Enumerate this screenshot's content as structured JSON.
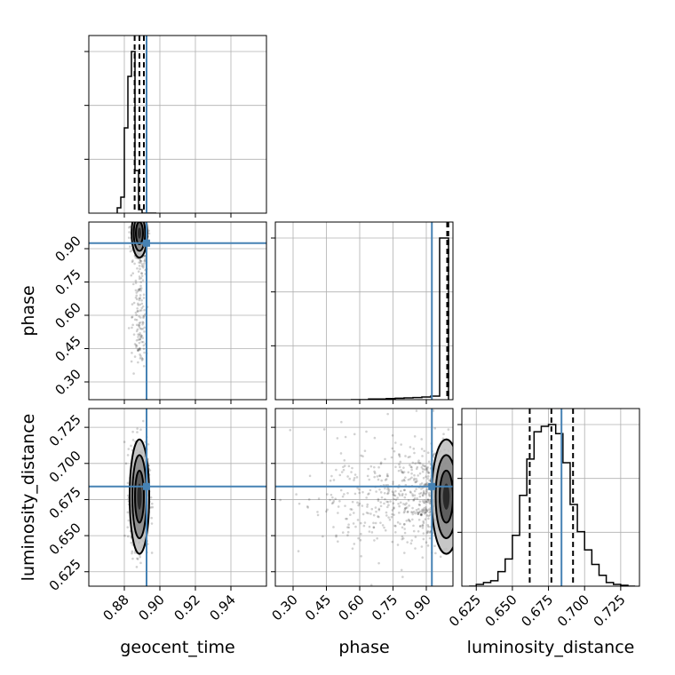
{
  "chart_data": {
    "type": "corner",
    "parameters": [
      {
        "name": "geocent_time",
        "label": "geocent_time",
        "range": [
          0.86,
          0.96
        ],
        "ticks": [
          0.88,
          0.9,
          0.92,
          0.94
        ],
        "tick_labels": [
          "0.88",
          "0.90",
          "0.92",
          "0.94"
        ],
        "truth": 0.8925,
        "quantiles": [
          0.8858,
          0.8885,
          0.891
        ]
      },
      {
        "name": "phase",
        "label": "phase",
        "range": [
          0.22,
          1.02
        ],
        "ticks": [
          0.3,
          0.45,
          0.6,
          0.75,
          0.9
        ],
        "tick_labels": [
          "0.30",
          "0.45",
          "0.60",
          "0.75",
          "0.90"
        ],
        "truth": 0.925,
        "quantiles": [
          0.994,
          0.997,
          0.999
        ]
      },
      {
        "name": "luminosity_distance",
        "label": "luminosity_distance",
        "range": [
          0.615,
          0.738
        ],
        "ticks": [
          0.625,
          0.65,
          0.675,
          0.7,
          0.725
        ],
        "tick_labels": [
          "0.625",
          "0.650",
          "0.675",
          "0.700",
          "0.725"
        ],
        "truth": 0.684,
        "quantiles": [
          0.662,
          0.677,
          0.692
        ]
      }
    ],
    "histograms": {
      "geocent_time": {
        "bins": [
          0.876,
          0.878,
          0.88,
          0.882,
          0.884,
          0.886,
          0.888,
          0.89,
          0.892,
          0.894,
          0.896,
          0.898
        ],
        "counts": [
          0.03,
          0.09,
          0.48,
          0.77,
          0.91,
          0.24,
          0.02,
          0.0,
          0.0,
          0.0,
          0.0
        ]
      },
      "phase": {
        "bins": [
          0.56,
          0.6,
          0.64,
          0.68,
          0.72,
          0.76,
          0.8,
          0.84,
          0.88,
          0.92,
          0.96,
          1.0
        ],
        "counts": [
          0.0,
          0.0,
          0.004,
          0.004,
          0.006,
          0.008,
          0.01,
          0.012,
          0.015,
          0.02,
          0.9
        ]
      },
      "luminosity_distance": {
        "bins": [
          0.62,
          0.625,
          0.63,
          0.635,
          0.64,
          0.645,
          0.65,
          0.655,
          0.66,
          0.665,
          0.67,
          0.675,
          0.68,
          0.685,
          0.69,
          0.695,
          0.7,
          0.705,
          0.71,
          0.715,
          0.72,
          0.725,
          0.73,
          0.735
        ],
        "counts": [
          0.0,
          0.01,
          0.02,
          0.03,
          0.08,
          0.15,
          0.28,
          0.5,
          0.7,
          0.85,
          0.88,
          0.89,
          0.84,
          0.68,
          0.45,
          0.3,
          0.2,
          0.12,
          0.06,
          0.02,
          0.01,
          0.005,
          0.0
        ]
      }
    },
    "pairs": [
      {
        "x": "geocent_time",
        "y": "phase",
        "center": [
          0.8885,
          0.97
        ],
        "spread": [
          0.002,
          0.05
        ]
      },
      {
        "x": "geocent_time",
        "y": "luminosity_distance",
        "center": [
          0.8885,
          0.677
        ],
        "spread": [
          0.0025,
          0.018
        ]
      },
      {
        "x": "phase",
        "y": "luminosity_distance",
        "center": [
          0.99,
          0.677
        ],
        "spread": [
          0.03,
          0.018
        ]
      }
    ],
    "truth_color": "#4682b4",
    "grid": true
  },
  "axis_titles": {
    "geocent_time": "geocent_time",
    "phase": "phase",
    "luminosity_distance": "luminosity_distance",
    "phase_y": "phase",
    "luminosity_distance_y": "luminosity_distance"
  }
}
